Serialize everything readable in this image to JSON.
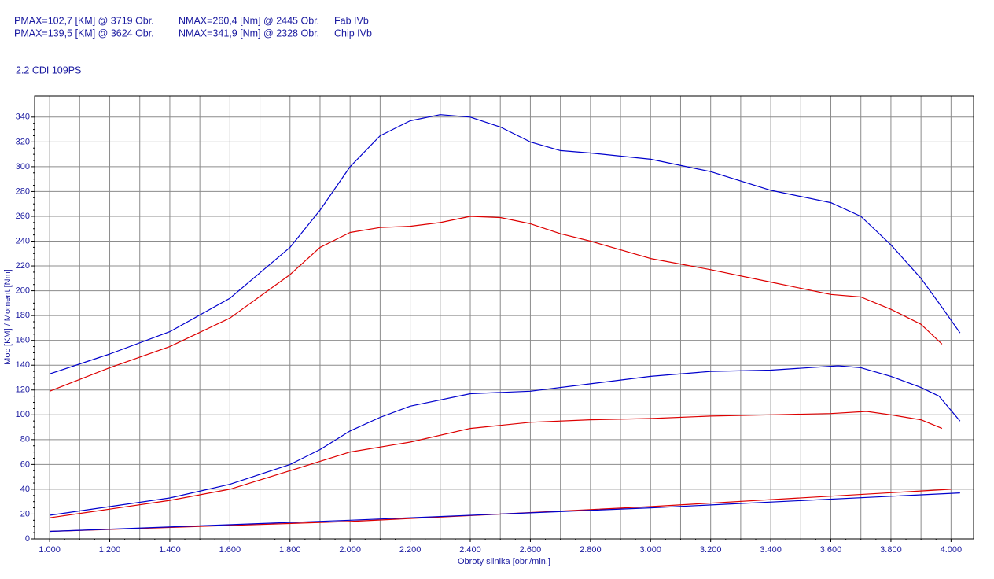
{
  "chart_data": {
    "type": "line",
    "header": [
      [
        "PMAX=102,7 [KM] @ 3719 Obr.",
        "NMAX=260,4 [Nm] @ 2445 Obr.",
        "Fab IVb"
      ],
      [
        "PMAX=139,5 [KM] @ 3624 Obr.",
        "NMAX=341,9 [Nm] @ 2328 Obr.",
        "Chip IVb"
      ]
    ],
    "title": "2.2 CDI 109PS",
    "x_label": "Obroty silnika [obr./min.]",
    "y_label": "Moc [KM] / Moment [Nm]",
    "xlim": [
      950,
      4075
    ],
    "ylim": [
      0,
      357
    ],
    "xticks": [
      {
        "value": 1000,
        "label": "1.000"
      },
      {
        "value": 1200,
        "label": "1.200"
      },
      {
        "value": 1400,
        "label": "1.400"
      },
      {
        "value": 1600,
        "label": "1.600"
      },
      {
        "value": 1800,
        "label": "1.800"
      },
      {
        "value": 2000,
        "label": "2.000"
      },
      {
        "value": 2200,
        "label": "2.200"
      },
      {
        "value": 2400,
        "label": "2.400"
      },
      {
        "value": 2600,
        "label": "2.600"
      },
      {
        "value": 2800,
        "label": "2.800"
      },
      {
        "value": 3000,
        "label": "3.000"
      },
      {
        "value": 3200,
        "label": "3.200"
      },
      {
        "value": 3400,
        "label": "3.400"
      },
      {
        "value": 3600,
        "label": "3.600"
      },
      {
        "value": 3800,
        "label": "3.800"
      },
      {
        "value": 4000,
        "label": "4.000"
      }
    ],
    "yticks": [
      0,
      20,
      40,
      60,
      80,
      100,
      120,
      140,
      160,
      180,
      200,
      220,
      240,
      260,
      280,
      300,
      320,
      340
    ],
    "grid": true,
    "series": [
      {
        "color": "#0000cc",
        "x": [
          1000,
          1200,
          1400,
          1600,
          1800,
          1900,
          2000,
          2100,
          2200,
          2300,
          2400,
          2500,
          2600,
          2700,
          2800,
          3000,
          3200,
          3400,
          3600,
          3700,
          3800,
          3900,
          3960,
          4030
        ],
        "values": [
          133,
          149,
          167,
          194,
          235,
          265,
          300,
          325,
          337,
          342,
          340,
          332,
          320,
          313,
          311,
          306,
          296,
          281,
          271,
          260,
          237,
          210,
          190,
          166
        ]
      },
      {
        "color": "#dd0000",
        "x": [
          1000,
          1200,
          1400,
          1600,
          1800,
          1900,
          2000,
          2100,
          2200,
          2300,
          2400,
          2500,
          2600,
          2700,
          2800,
          3000,
          3200,
          3400,
          3600,
          3700,
          3800,
          3900,
          3970
        ],
        "values": [
          119,
          138,
          155,
          178,
          213,
          235,
          247,
          251,
          252,
          255,
          260,
          259,
          254,
          246,
          240,
          226,
          217,
          207,
          197,
          195,
          185,
          173,
          157
        ]
      },
      {
        "color": "#0000cc",
        "x": [
          1000,
          1200,
          1400,
          1600,
          1800,
          1900,
          2000,
          2100,
          2200,
          2400,
          2600,
          2800,
          3000,
          3200,
          3400,
          3624,
          3700,
          3800,
          3900,
          3960,
          4030
        ],
        "values": [
          19,
          26,
          33,
          44,
          60,
          72,
          87,
          98,
          107,
          117,
          119,
          125,
          131,
          135,
          136,
          139.5,
          138,
          131,
          122,
          115,
          95
        ]
      },
      {
        "color": "#dd0000",
        "x": [
          1000,
          1200,
          1400,
          1600,
          1800,
          2000,
          2200,
          2400,
          2600,
          2800,
          3000,
          3200,
          3400,
          3600,
          3719,
          3800,
          3900,
          3970
        ],
        "values": [
          17,
          24,
          31,
          40,
          55,
          70,
          78,
          89,
          94,
          96,
          97,
          99,
          100,
          101,
          102.7,
          100,
          96,
          89
        ]
      },
      {
        "color": "#dd0000",
        "x": [
          1000,
          2000,
          3000,
          4000
        ],
        "values": [
          6,
          14,
          26,
          40
        ]
      },
      {
        "color": "#0000cc",
        "x": [
          1000,
          2000,
          3000,
          4030
        ],
        "values": [
          6,
          15,
          25,
          37
        ]
      }
    ]
  }
}
